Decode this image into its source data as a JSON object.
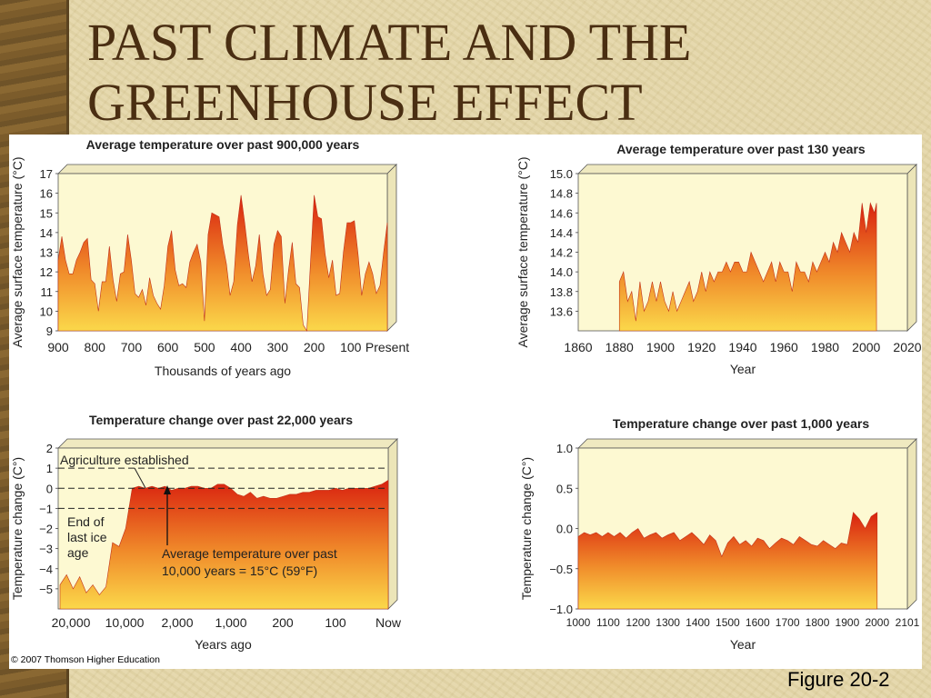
{
  "slide": {
    "title_line1": "PAST CLIMATE AND THE",
    "title_line2": "GREENHOUSE EFFECT",
    "copyright": "© 2007 Thomson Higher Education",
    "figure_label": "Figure 20-2"
  },
  "colors": {
    "plot_background": "#fdf9d2",
    "area_top": "#d9210f",
    "area_bottom": "#fbd84a",
    "title_text": "#4a2e12"
  },
  "chart_data": [
    {
      "id": "p900k",
      "type": "area",
      "title": "Average temperature over past 900,000 years",
      "ylabel": "Average surface temperature (°C)",
      "xlabel": "Thousands of years ago",
      "xlim": [
        900,
        0
      ],
      "ylim": [
        9,
        17
      ],
      "xticks": [
        900,
        800,
        700,
        600,
        500,
        400,
        300,
        200,
        100,
        0
      ],
      "xtick_labels": [
        "900",
        "800",
        "700",
        "600",
        "500",
        "400",
        "300",
        "200",
        "100",
        "Present"
      ],
      "yticks": [
        9,
        10,
        11,
        12,
        13,
        14,
        15,
        16,
        17
      ],
      "ytick_labels": [
        "9",
        "10",
        "11",
        "12",
        "13",
        "14",
        "15",
        "16",
        "17"
      ],
      "x": [
        900,
        890,
        880,
        870,
        860,
        850,
        840,
        830,
        820,
        810,
        800,
        790,
        780,
        770,
        760,
        750,
        740,
        730,
        720,
        710,
        700,
        690,
        680,
        670,
        660,
        650,
        640,
        630,
        620,
        610,
        600,
        590,
        580,
        570,
        560,
        550,
        540,
        530,
        520,
        510,
        500,
        490,
        480,
        470,
        460,
        450,
        440,
        430,
        420,
        410,
        400,
        390,
        380,
        370,
        360,
        350,
        340,
        330,
        320,
        310,
        300,
        290,
        280,
        270,
        260,
        250,
        240,
        230,
        220,
        210,
        200,
        190,
        180,
        170,
        160,
        150,
        140,
        130,
        120,
        110,
        100,
        90,
        80,
        70,
        60,
        50,
        40,
        30,
        20,
        10,
        0
      ],
      "values": [
        12.6,
        13.8,
        12.6,
        11.9,
        11.9,
        12.6,
        13,
        13.5,
        13.7,
        11.6,
        11.4,
        10,
        11.5,
        11.5,
        13.3,
        11.6,
        10.5,
        11.9,
        12,
        13.9,
        12.6,
        10.9,
        10.7,
        11.1,
        10.3,
        11.7,
        10.8,
        10.4,
        10.1,
        11.3,
        13.3,
        14.1,
        12.1,
        11.3,
        11.4,
        11.2,
        12.5,
        13,
        13.4,
        12.5,
        9.5,
        13.9,
        15,
        14.9,
        14.8,
        13.4,
        12.4,
        10.8,
        11.5,
        14.4,
        15.9,
        14.5,
        12.9,
        11.5,
        12.3,
        13.9,
        11.9,
        10.8,
        11.1,
        13.4,
        14.1,
        13.8,
        10.4,
        12.1,
        13.5,
        11.4,
        11.2,
        9.3,
        9,
        12.5,
        15.9,
        14.8,
        14.7,
        12.9,
        11.7,
        12.6,
        10.8,
        10.9,
        13,
        14.5,
        14.5,
        14.6,
        12.9,
        10.8,
        11.9,
        12.5,
        11.9,
        10.9,
        11.3,
        13,
        14.5
      ]
    },
    {
      "id": "p130",
      "type": "area",
      "title": "Average temperature over past 130 years",
      "ylabel": "Average surface temperature (°C)",
      "xlabel": "Year",
      "xlim": [
        1860,
        2020
      ],
      "ylim": [
        13.4,
        15.0
      ],
      "xticks": [
        1860,
        1880,
        1900,
        1920,
        1940,
        1960,
        1980,
        2000,
        2020
      ],
      "xtick_labels": [
        "1860",
        "1880",
        "1900",
        "1920",
        "1940",
        "1960",
        "1980",
        "2000",
        "2020"
      ],
      "yticks": [
        13.6,
        13.8,
        14.0,
        14.2,
        14.4,
        14.6,
        14.8,
        15.0
      ],
      "ytick_labels": [
        "13.6",
        "13.8",
        "14.0",
        "14.2",
        "14.4",
        "14.6",
        "14.8",
        "15.0"
      ],
      "x": [
        1880,
        1882,
        1884,
        1886,
        1888,
        1890,
        1892,
        1894,
        1896,
        1898,
        1900,
        1902,
        1904,
        1906,
        1908,
        1910,
        1912,
        1914,
        1916,
        1918,
        1920,
        1922,
        1924,
        1926,
        1928,
        1930,
        1932,
        1934,
        1936,
        1938,
        1940,
        1942,
        1944,
        1946,
        1948,
        1950,
        1952,
        1954,
        1956,
        1958,
        1960,
        1962,
        1964,
        1966,
        1968,
        1970,
        1972,
        1974,
        1976,
        1978,
        1980,
        1982,
        1984,
        1986,
        1988,
        1990,
        1992,
        1994,
        1996,
        1998,
        2000,
        2002,
        2004,
        2005
      ],
      "values": [
        13.9,
        14.0,
        13.7,
        13.8,
        13.5,
        13.9,
        13.6,
        13.7,
        13.9,
        13.7,
        13.9,
        13.7,
        13.6,
        13.8,
        13.6,
        13.7,
        13.8,
        13.9,
        13.7,
        13.8,
        14.0,
        13.8,
        14.0,
        13.9,
        14.0,
        14.0,
        14.1,
        14.0,
        14.1,
        14.1,
        14.0,
        14.0,
        14.2,
        14.1,
        14.0,
        13.9,
        14.0,
        14.1,
        13.9,
        14.1,
        14.0,
        14.0,
        13.8,
        14.1,
        14.0,
        14.0,
        13.9,
        14.1,
        14.0,
        14.1,
        14.2,
        14.1,
        14.3,
        14.2,
        14.4,
        14.3,
        14.2,
        14.4,
        14.3,
        14.7,
        14.4,
        14.7,
        14.6,
        14.7
      ]
    },
    {
      "id": "p22k",
      "type": "area",
      "title": "Temperature change over past 22,000 years",
      "ylabel": "Temperature change (C°)",
      "xlabel": "Years ago",
      "ylim": [
        -6,
        2
      ],
      "xtick_labels": [
        "20,000",
        "10,000",
        "2,000",
        "1,000",
        "200",
        "100",
        "Now"
      ],
      "yticks": [
        -5,
        -4,
        -3,
        -2,
        -1,
        0,
        1,
        2
      ],
      "ytick_labels": [
        "−5",
        "−4",
        "−3",
        "−2",
        "−1",
        "0",
        "1",
        "2"
      ],
      "dashed_levels": [
        1,
        0,
        -1
      ],
      "annotations": {
        "agriculture": "Agriculture established",
        "end_ice_line1": "End of",
        "end_ice_line2": "last ice",
        "end_ice_line3": "age",
        "avg_line1": "Average temperature over past",
        "avg_line2": "10,000 years = 15°C (59°F)"
      },
      "x": [
        0,
        0.02,
        0.04,
        0.06,
        0.08,
        0.1,
        0.12,
        0.14,
        0.16,
        0.18,
        0.2,
        0.22,
        0.24,
        0.26,
        0.28,
        0.3,
        0.32,
        0.34,
        0.36,
        0.38,
        0.4,
        0.42,
        0.44,
        0.46,
        0.48,
        0.5,
        0.52,
        0.54,
        0.56,
        0.58,
        0.6,
        0.62,
        0.64,
        0.66,
        0.68,
        0.7,
        0.72,
        0.74,
        0.76,
        0.78,
        0.8,
        0.82,
        0.84,
        0.86,
        0.88,
        0.9,
        0.92,
        0.94,
        0.96,
        0.98,
        1.0
      ],
      "values": [
        -4.8,
        -4.3,
        -5.0,
        -4.4,
        -5.2,
        -4.8,
        -5.3,
        -4.9,
        -2.7,
        -2.9,
        -2.0,
        0.0,
        0.1,
        0.0,
        0.1,
        0.0,
        0.1,
        -0.1,
        0.0,
        0.0,
        0.1,
        0.1,
        0.0,
        0.0,
        0.2,
        0.2,
        0.0,
        -0.3,
        -0.4,
        -0.2,
        -0.5,
        -0.4,
        -0.5,
        -0.5,
        -0.4,
        -0.3,
        -0.3,
        -0.2,
        -0.2,
        -0.1,
        -0.1,
        -0.1,
        0.0,
        -0.1,
        0.0,
        0.0,
        0.0,
        0.0,
        0.1,
        0.2,
        0.4
      ]
    },
    {
      "id": "p1000",
      "type": "area",
      "title": "Temperature change over past 1,000 years",
      "ylabel": "Temperature change (C°)",
      "xlabel": "Year",
      "xlim": [
        1000,
        2101
      ],
      "ylim": [
        -1.0,
        1.0
      ],
      "xticks": [
        1000,
        1100,
        1200,
        1300,
        1400,
        1500,
        1600,
        1700,
        1800,
        1900,
        2000,
        2101
      ],
      "xtick_labels": [
        "1000",
        "1100",
        "1200",
        "1300",
        "1400",
        "1500",
        "1600",
        "1700",
        "1800",
        "1900",
        "2000",
        "2101"
      ],
      "yticks": [
        -1.0,
        -0.5,
        0.0,
        0.5,
        1.0
      ],
      "ytick_labels": [
        "−1.0",
        "−0.5",
        "0.0",
        "0.5",
        "1.0"
      ],
      "x": [
        1000,
        1020,
        1040,
        1060,
        1080,
        1100,
        1120,
        1140,
        1160,
        1180,
        1200,
        1220,
        1240,
        1260,
        1280,
        1300,
        1320,
        1340,
        1360,
        1380,
        1400,
        1420,
        1440,
        1460,
        1480,
        1500,
        1520,
        1540,
        1560,
        1580,
        1600,
        1620,
        1640,
        1660,
        1680,
        1700,
        1720,
        1740,
        1760,
        1780,
        1800,
        1820,
        1840,
        1860,
        1880,
        1900,
        1920,
        1940,
        1960,
        1980,
        2000
      ],
      "values": [
        -0.1,
        -0.05,
        -0.08,
        -0.05,
        -0.1,
        -0.05,
        -0.1,
        -0.05,
        -0.12,
        -0.05,
        0.0,
        -0.12,
        -0.08,
        -0.05,
        -0.12,
        -0.08,
        -0.05,
        -0.15,
        -0.1,
        -0.05,
        -0.12,
        -0.2,
        -0.08,
        -0.15,
        -0.35,
        -0.18,
        -0.1,
        -0.2,
        -0.15,
        -0.22,
        -0.12,
        -0.15,
        -0.25,
        -0.18,
        -0.12,
        -0.15,
        -0.2,
        -0.1,
        -0.15,
        -0.2,
        -0.22,
        -0.15,
        -0.2,
        -0.25,
        -0.18,
        -0.2,
        0.2,
        0.12,
        0.0,
        0.15,
        0.2
      ]
    }
  ]
}
